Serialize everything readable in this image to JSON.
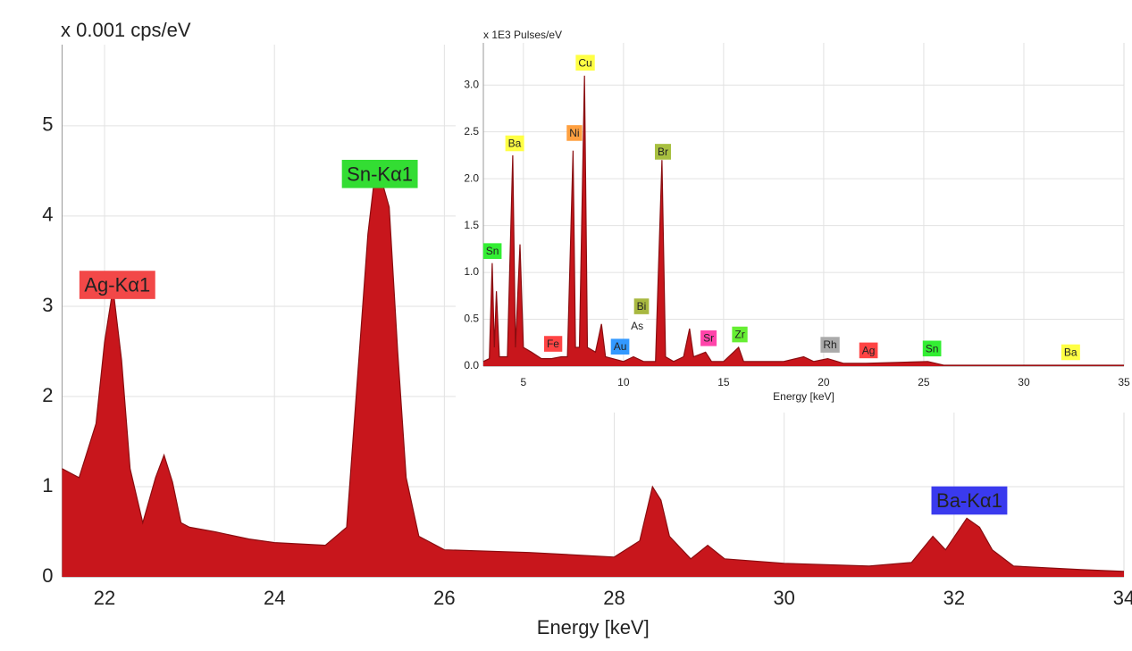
{
  "chart_data": [
    {
      "type": "area",
      "title": "x 0.001 cps/eV",
      "x_label": "Energy [keV]",
      "color": "#c8161c",
      "grid": true,
      "xlim": [
        21.5,
        34
      ],
      "ylim": [
        0,
        5.9
      ],
      "xticks": [
        22,
        24,
        26,
        28,
        30,
        32,
        34
      ],
      "yticks": [
        0,
        1,
        2,
        3,
        4,
        5
      ],
      "x": [
        21.5,
        21.7,
        21.9,
        22.0,
        22.1,
        22.2,
        22.3,
        22.45,
        22.6,
        22.7,
        22.8,
        22.9,
        23.0,
        23.3,
        23.7,
        24.0,
        24.6,
        24.85,
        25.0,
        25.1,
        25.2,
        25.35,
        25.45,
        25.55,
        25.7,
        26.0,
        27.0,
        28.0,
        28.3,
        28.45,
        28.55,
        28.65,
        28.9,
        29.1,
        29.3,
        30.0,
        31.0,
        31.5,
        31.75,
        31.9,
        32.15,
        32.3,
        32.45,
        32.7,
        33.5,
        34.0
      ],
      "values": [
        1.2,
        1.1,
        1.7,
        2.6,
        3.2,
        2.4,
        1.2,
        0.6,
        1.1,
        1.35,
        1.05,
        0.6,
        0.55,
        0.5,
        0.42,
        0.38,
        0.35,
        0.55,
        2.5,
        3.8,
        4.6,
        4.1,
        2.5,
        1.1,
        0.45,
        0.3,
        0.27,
        0.22,
        0.4,
        1.0,
        0.85,
        0.45,
        0.2,
        0.35,
        0.2,
        0.15,
        0.12,
        0.16,
        0.45,
        0.3,
        0.65,
        0.55,
        0.3,
        0.12,
        0.08,
        0.06
      ],
      "annotations": [
        {
          "text": "Ag-Kα1",
          "x": 22.15,
          "y": 3.22,
          "color": "#f24848",
          "text_color": "#222"
        },
        {
          "text": "Sn-Kα1",
          "x": 25.24,
          "y": 4.45,
          "color": "#33dd33",
          "text_color": "#222"
        },
        {
          "text": "Ba-Kα1",
          "x": 32.18,
          "y": 0.83,
          "color": "#3a3aee",
          "text_color": "#fff"
        }
      ]
    },
    {
      "type": "area",
      "title": "x 1E3 Pulses/eV",
      "x_label": "Energy [keV]",
      "color": "#c8161c",
      "grid": true,
      "xlim": [
        3,
        35
      ],
      "ylim": [
        0,
        3.45
      ],
      "xticks": [
        5,
        10,
        15,
        20,
        25,
        30,
        35
      ],
      "yticks": [
        {
          "value": 0,
          "label": "0.0"
        },
        0.5,
        {
          "value": 1,
          "label": "1.0"
        },
        1.5,
        {
          "value": 2,
          "label": "2.0"
        },
        2.5,
        {
          "value": 3,
          "label": "3.0"
        }
      ],
      "x": [
        3.0,
        3.3,
        3.44,
        3.55,
        3.65,
        3.8,
        4.2,
        4.47,
        4.6,
        4.83,
        5.0,
        5.4,
        5.9,
        6.4,
        6.9,
        7.2,
        7.48,
        7.6,
        7.8,
        8.05,
        8.2,
        8.6,
        8.9,
        9.1,
        10.0,
        10.5,
        11.0,
        11.6,
        11.92,
        12.1,
        12.5,
        13.0,
        13.3,
        13.5,
        14.1,
        14.4,
        15.0,
        15.75,
        16.0,
        17.0,
        18.0,
        19.0,
        19.5,
        20.2,
        21.0,
        22.1,
        25.2,
        26.0,
        28.5,
        35.0
      ],
      "values": [
        0.05,
        0.08,
        1.1,
        0.2,
        0.8,
        0.1,
        0.1,
        2.25,
        0.2,
        1.3,
        0.2,
        0.15,
        0.08,
        0.08,
        0.1,
        0.1,
        2.3,
        0.2,
        0.2,
        3.1,
        0.2,
        0.15,
        0.45,
        0.1,
        0.05,
        0.1,
        0.05,
        0.05,
        2.2,
        0.1,
        0.05,
        0.1,
        0.4,
        0.1,
        0.15,
        0.05,
        0.05,
        0.2,
        0.05,
        0.05,
        0.05,
        0.1,
        0.05,
        0.08,
        0.03,
        0.03,
        0.05,
        0.01,
        0.01,
        0.01
      ],
      "annotations": [
        {
          "text": "Sn",
          "x": 3.45,
          "y": 1.22,
          "color": "#33ee33",
          "text_color": "#222"
        },
        {
          "text": "Ba",
          "x": 4.56,
          "y": 2.37,
          "color": "#ffff44",
          "text_color": "#222"
        },
        {
          "text": "Ni",
          "x": 7.55,
          "y": 2.48,
          "color": "#ffa040",
          "text_color": "#222"
        },
        {
          "text": "Cu",
          "x": 8.09,
          "y": 3.23,
          "color": "#ffff44",
          "text_color": "#222"
        },
        {
          "text": "Br",
          "x": 11.97,
          "y": 2.28,
          "color": "#a8c040",
          "text_color": "#222"
        },
        {
          "text": "Bi",
          "x": 10.9,
          "y": 0.63,
          "color": "#a8b840",
          "text_color": "#222"
        },
        {
          "text": "As",
          "x": 10.68,
          "y": 0.42,
          "color": "#ffffff",
          "text_color": "#222"
        },
        {
          "text": "Au",
          "x": 9.83,
          "y": 0.2,
          "color": "#3399ff",
          "text_color": "#222"
        },
        {
          "text": "Fe",
          "x": 6.48,
          "y": 0.23,
          "color": "#ff4444",
          "text_color": "#222"
        },
        {
          "text": "Sr",
          "x": 14.25,
          "y": 0.29,
          "color": "#ff44aa",
          "text_color": "#222"
        },
        {
          "text": "Zr",
          "x": 15.81,
          "y": 0.33,
          "color": "#66ee33",
          "text_color": "#222"
        },
        {
          "text": "Rh",
          "x": 20.32,
          "y": 0.22,
          "color": "#aaaaaa",
          "text_color": "#222"
        },
        {
          "text": "Ag",
          "x": 22.24,
          "y": 0.16,
          "color": "#ff4444",
          "text_color": "#222"
        },
        {
          "text": "Sn",
          "x": 25.41,
          "y": 0.18,
          "color": "#33ee33",
          "text_color": "#222"
        },
        {
          "text": "Ba",
          "x": 32.33,
          "y": 0.14,
          "color": "#ffff44",
          "text_color": "#222"
        }
      ]
    }
  ]
}
